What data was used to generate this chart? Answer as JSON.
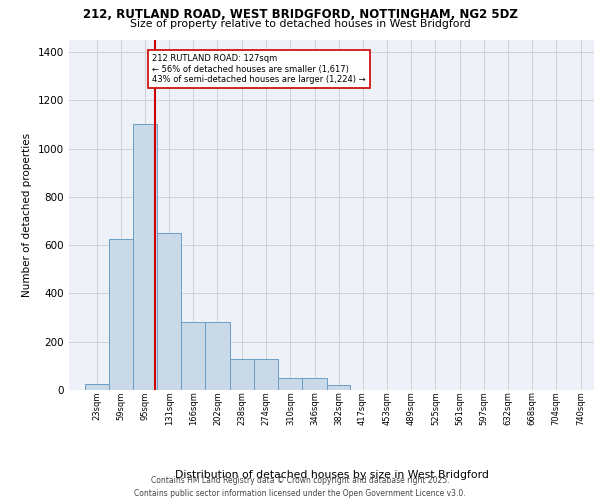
{
  "title_line1": "212, RUTLAND ROAD, WEST BRIDGFORD, NOTTINGHAM, NG2 5DZ",
  "title_line2": "Size of property relative to detached houses in West Bridgford",
  "xlabel": "Distribution of detached houses by size in West Bridgford",
  "ylabel": "Number of detached properties",
  "footer_line1": "Contains HM Land Registry data © Crown copyright and database right 2025.",
  "footer_line2": "Contains public sector information licensed under the Open Government Licence v3.0.",
  "bar_labels": [
    "23sqm",
    "59sqm",
    "95sqm",
    "131sqm",
    "166sqm",
    "202sqm",
    "238sqm",
    "274sqm",
    "310sqm",
    "346sqm",
    "382sqm",
    "417sqm",
    "453sqm",
    "489sqm",
    "525sqm",
    "561sqm",
    "597sqm",
    "632sqm",
    "668sqm",
    "704sqm",
    "740sqm"
  ],
  "bar_values": [
    25,
    625,
    1100,
    650,
    280,
    280,
    130,
    130,
    50,
    50,
    20,
    0,
    0,
    0,
    0,
    0,
    0,
    0,
    0,
    0,
    0
  ],
  "bar_color": "#c9d9e8",
  "bar_edge_color": "#6a9ec5",
  "grid_color": "#d0d0d0",
  "background_color": "#eef2f8",
  "vline_color": "#cc0000",
  "annotation_text": "212 RUTLAND ROAD: 127sqm\n← 56% of detached houses are smaller (1,617)\n43% of semi-detached houses are larger (1,224) →",
  "annotation_box_color": "#ffffff",
  "annotation_border_color": "#cc0000",
  "ylim": [
    0,
    1450
  ],
  "property_sqm": 127,
  "start_values": [
    23,
    59,
    95,
    131,
    166,
    202,
    238,
    274,
    310,
    346,
    382,
    417,
    453,
    489,
    525,
    561,
    597,
    632,
    668,
    704,
    740
  ]
}
